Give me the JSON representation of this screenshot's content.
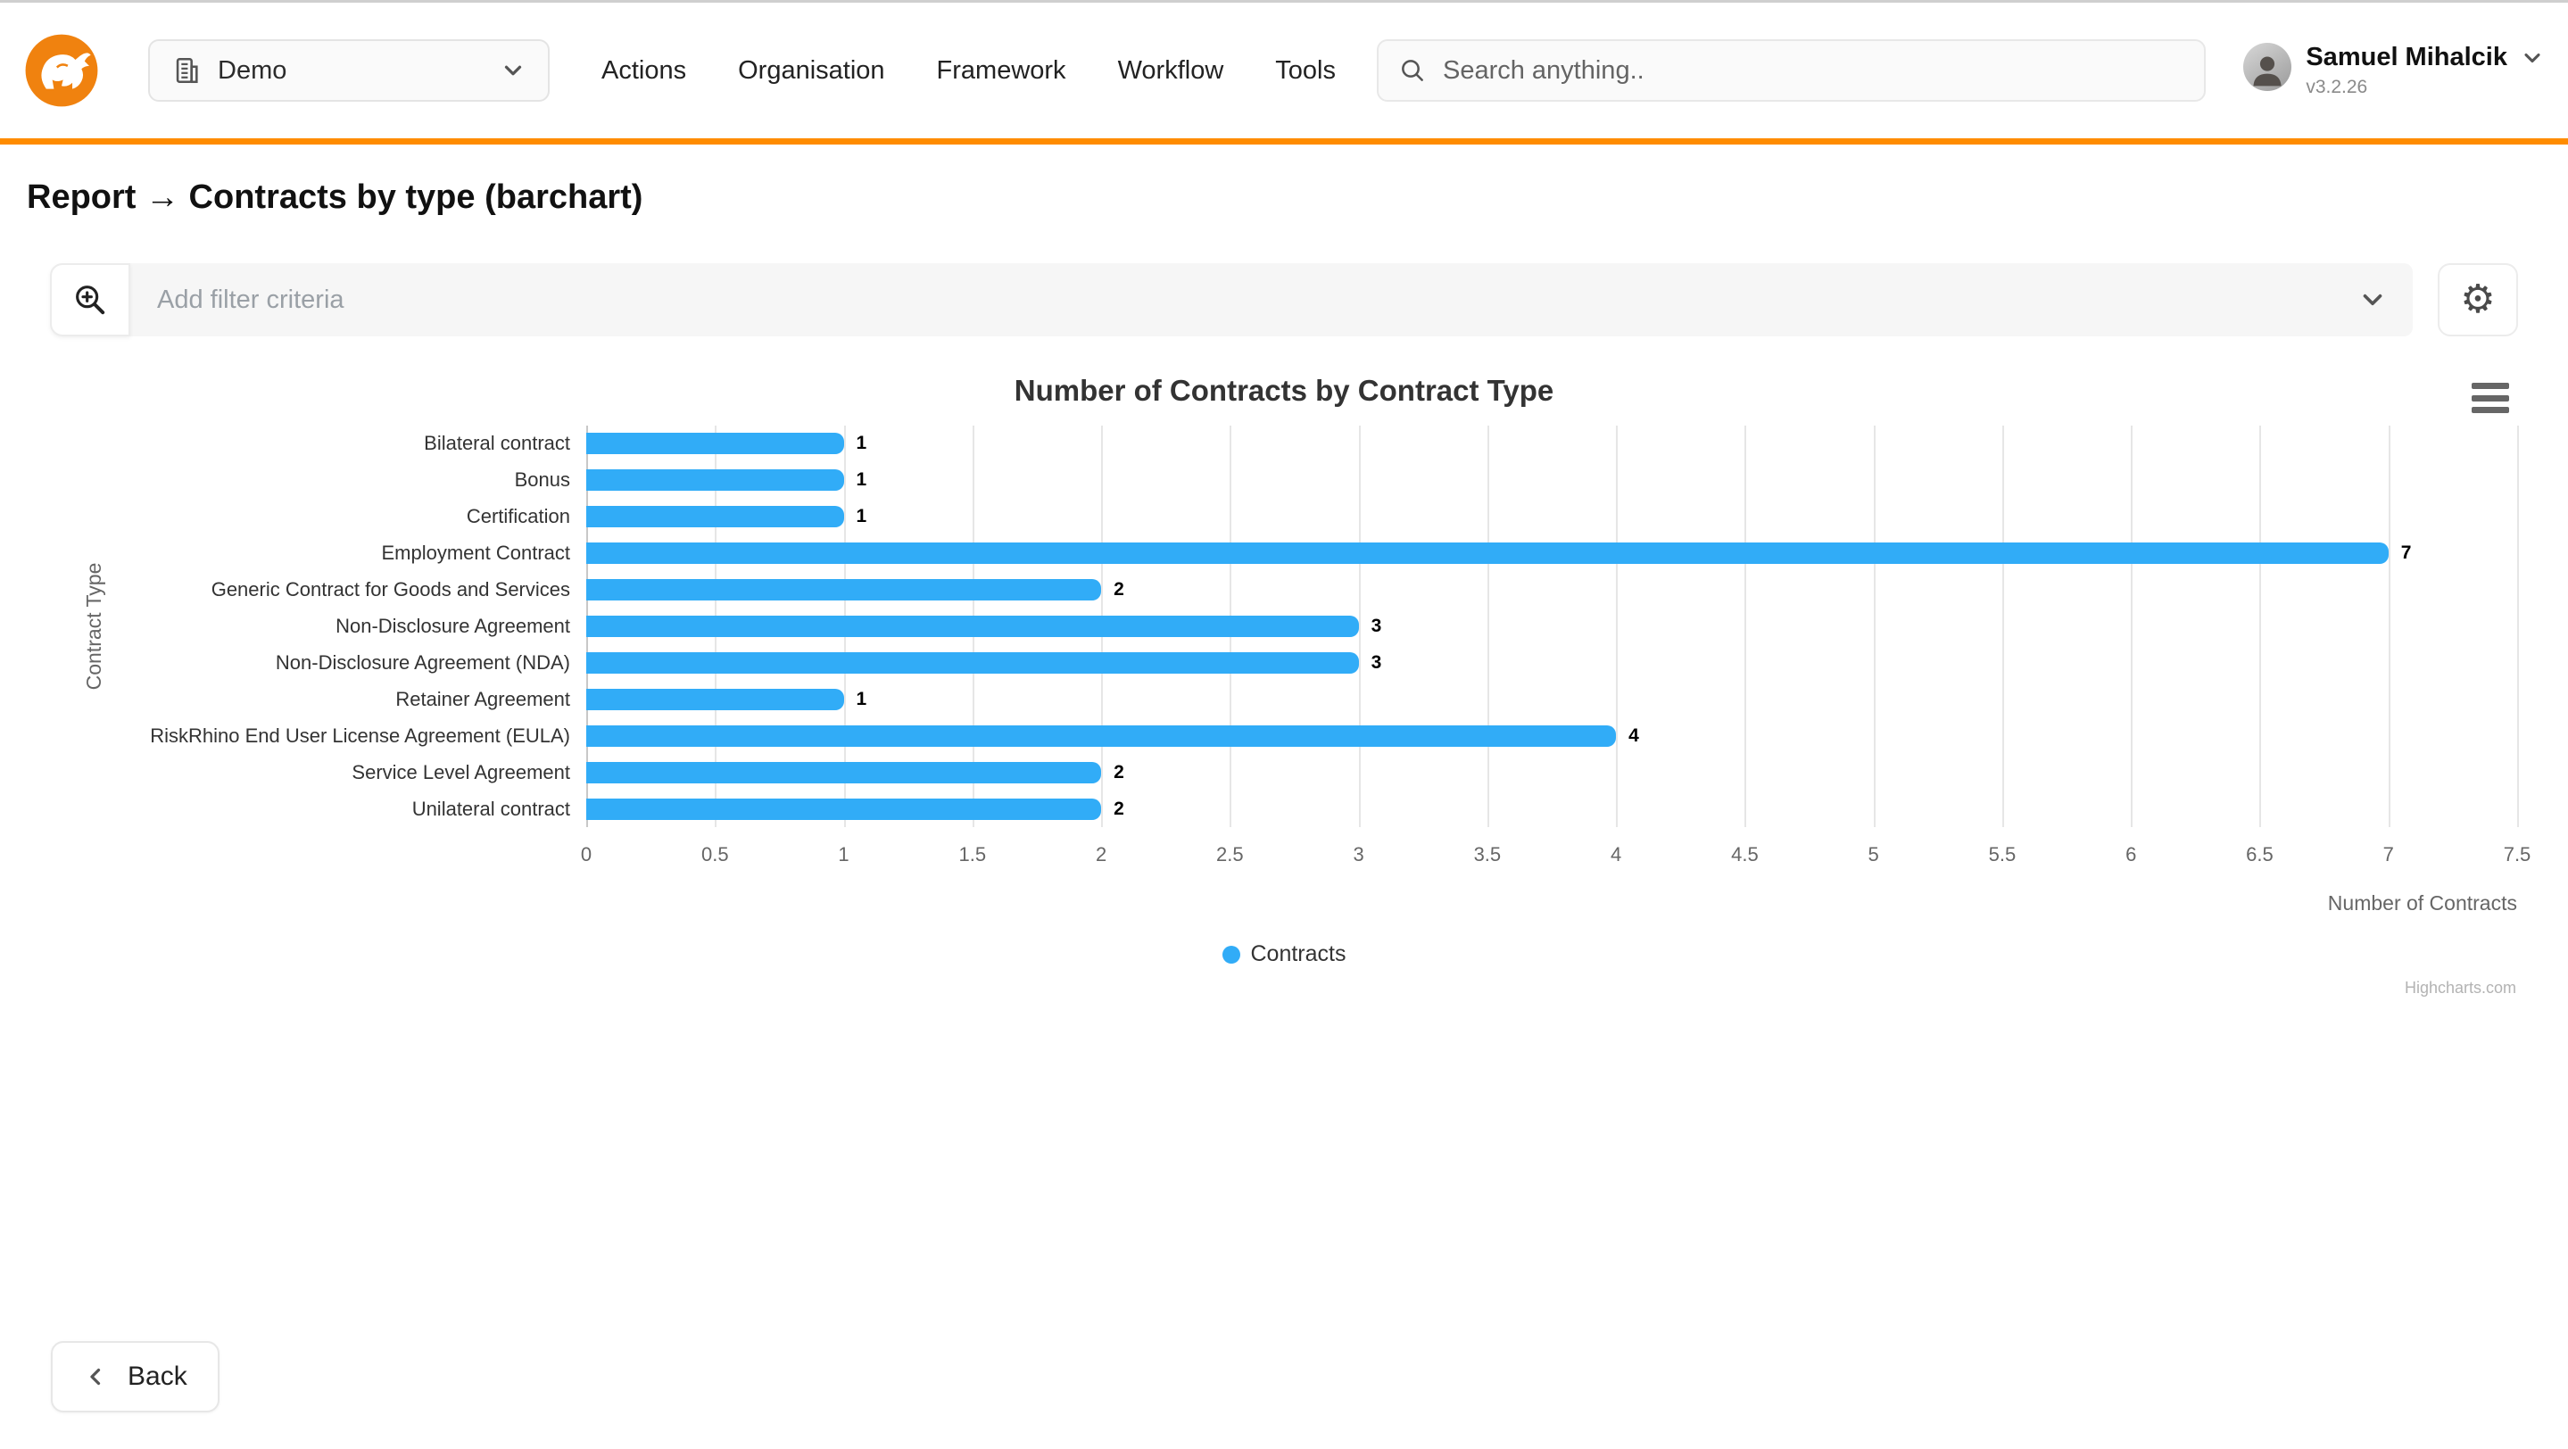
{
  "header": {
    "org_selector": {
      "label": "Demo"
    },
    "nav": [
      "Actions",
      "Organisation",
      "Framework",
      "Workflow",
      "Tools"
    ],
    "search": {
      "placeholder": "Search anything.."
    },
    "user": {
      "name": "Samuel Mihalcik",
      "version": "v3.2.26"
    }
  },
  "page": {
    "title": "Report → Contracts by type (barchart)"
  },
  "filter": {
    "placeholder": "Add filter criteria"
  },
  "chart_data": {
    "type": "bar",
    "title": "Number of Contracts by Contract Type",
    "categories": [
      "Bilateral contract",
      "Bonus",
      "Certification",
      "Employment Contract",
      "Generic Contract for Goods and Services",
      "Non-Disclosure Agreement",
      "Non-Disclosure Agreement (NDA)",
      "Retainer Agreement",
      "RiskRhino End User License Agreement (EULA)",
      "Service Level Agreement",
      "Unilateral contract"
    ],
    "series": [
      {
        "name": "Contracts",
        "values": [
          1,
          1,
          1,
          7,
          2,
          3,
          3,
          1,
          4,
          2,
          2
        ]
      }
    ],
    "xlabel": "Number of Contracts",
    "ylabel": "Contract Type",
    "xlim": [
      0,
      7.5
    ],
    "tick_step": 0.5,
    "grid": true,
    "legend_position": "bottom",
    "bar_color": "#31ACF7",
    "credits": "Highcharts.com"
  },
  "footer": {
    "back_label": "Back"
  },
  "colors": {
    "accent_orange": "#FF8C00",
    "brand_orange": "#F0820F",
    "bar_blue": "#31ACF7"
  }
}
